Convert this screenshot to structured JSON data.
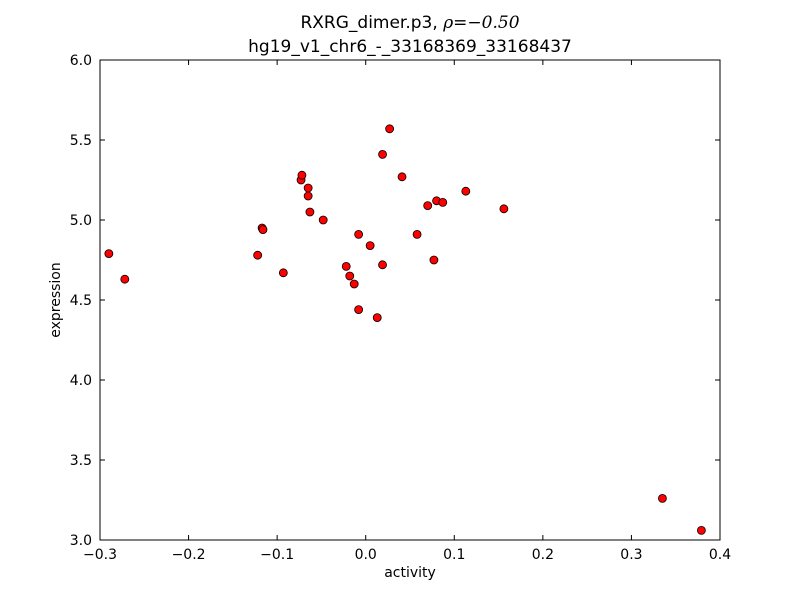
{
  "chart_data": {
    "type": "scatter",
    "title_line1": "RXRG_dimer.p3, ",
    "title_rho": "ρ=−0.50",
    "title_line2": "hg19_v1_chr6_-_33168369_33168437",
    "xlabel": "activity",
    "ylabel": "expression",
    "xlim": [
      -0.3,
      0.4
    ],
    "ylim": [
      3.0,
      6.0
    ],
    "xticks": [
      -0.3,
      -0.2,
      -0.1,
      0.0,
      0.1,
      0.2,
      0.3,
      0.4
    ],
    "xtick_labels": [
      "−0.3",
      "−0.2",
      "−0.1",
      "0.0",
      "0.1",
      "0.2",
      "0.3",
      "0.4"
    ],
    "yticks": [
      3.0,
      3.5,
      4.0,
      4.5,
      5.0,
      5.5,
      6.0
    ],
    "ytick_labels": [
      "3.0",
      "3.5",
      "4.0",
      "4.5",
      "5.0",
      "5.5",
      "6.0"
    ],
    "grid": false,
    "marker_color": "#ff0000",
    "marker_edge": "#000000",
    "points": [
      {
        "x": -0.29,
        "y": 4.79
      },
      {
        "x": -0.272,
        "y": 4.63
      },
      {
        "x": -0.122,
        "y": 4.78
      },
      {
        "x": -0.117,
        "y": 4.95
      },
      {
        "x": -0.116,
        "y": 4.94
      },
      {
        "x": -0.093,
        "y": 4.67
      },
      {
        "x": -0.073,
        "y": 5.25
      },
      {
        "x": -0.072,
        "y": 5.28
      },
      {
        "x": -0.065,
        "y": 5.2
      },
      {
        "x": -0.065,
        "y": 5.15
      },
      {
        "x": -0.063,
        "y": 5.05
      },
      {
        "x": -0.048,
        "y": 5.0
      },
      {
        "x": -0.022,
        "y": 4.71
      },
      {
        "x": -0.018,
        "y": 4.65
      },
      {
        "x": -0.013,
        "y": 4.6
      },
      {
        "x": -0.008,
        "y": 4.91
      },
      {
        "x": -0.008,
        "y": 4.44
      },
      {
        "x": 0.005,
        "y": 4.84
      },
      {
        "x": 0.013,
        "y": 4.39
      },
      {
        "x": 0.019,
        "y": 5.41
      },
      {
        "x": 0.019,
        "y": 4.72
      },
      {
        "x": 0.027,
        "y": 5.57
      },
      {
        "x": 0.041,
        "y": 5.27
      },
      {
        "x": 0.058,
        "y": 4.91
      },
      {
        "x": 0.07,
        "y": 5.09
      },
      {
        "x": 0.077,
        "y": 4.75
      },
      {
        "x": 0.08,
        "y": 5.12
      },
      {
        "x": 0.087,
        "y": 5.11
      },
      {
        "x": 0.113,
        "y": 5.18
      },
      {
        "x": 0.156,
        "y": 5.07
      },
      {
        "x": 0.335,
        "y": 3.26
      },
      {
        "x": 0.379,
        "y": 3.06
      }
    ]
  }
}
